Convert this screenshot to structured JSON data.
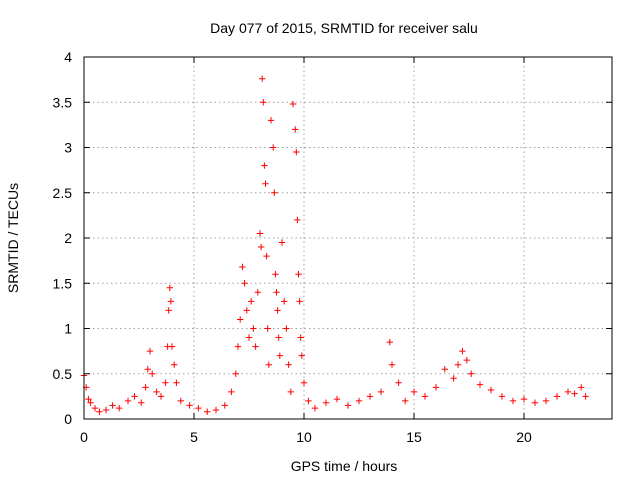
{
  "chart_data": {
    "type": "scatter",
    "title": "Day 077 of 2015, SRMTID for receiver salu",
    "xlabel": "GPS time / hours",
    "ylabel": "SRMTID / TECUs",
    "xlim": [
      0,
      24
    ],
    "ylim": [
      0,
      4
    ],
    "x_ticks": [
      0,
      5,
      10,
      15,
      20
    ],
    "x_tick_labels": [
      "0",
      "5",
      "10",
      "15",
      "20"
    ],
    "y_ticks": [
      0,
      0.5,
      1,
      1.5,
      2,
      2.5,
      3,
      3.5,
      4
    ],
    "y_tick_labels": [
      "0",
      "0.5",
      "1",
      "1.5",
      "2",
      "2.5",
      "3",
      "3.5",
      "4"
    ],
    "grid": true,
    "marker": "+",
    "color": "#ff0000",
    "series": [
      {
        "name": "salu",
        "x": [
          0.0,
          0.1,
          0.2,
          0.3,
          0.5,
          0.7,
          1.0,
          1.3,
          1.6,
          2.0,
          2.3,
          2.6,
          2.8,
          2.9,
          3.0,
          3.1,
          3.3,
          3.5,
          3.7,
          3.8,
          3.85,
          3.9,
          3.95,
          4.0,
          4.1,
          4.2,
          4.4,
          4.8,
          5.2,
          5.6,
          6.0,
          6.4,
          6.7,
          6.9,
          7.0,
          7.1,
          7.2,
          7.3,
          7.4,
          7.5,
          7.6,
          7.7,
          7.8,
          7.9,
          8.0,
          8.05,
          8.1,
          8.15,
          8.2,
          8.25,
          8.3,
          8.35,
          8.4,
          8.5,
          8.6,
          8.65,
          8.7,
          8.75,
          8.8,
          8.85,
          8.9,
          9.0,
          9.1,
          9.2,
          9.3,
          9.4,
          9.5,
          9.6,
          9.65,
          9.7,
          9.75,
          9.8,
          9.85,
          9.9,
          10.0,
          10.2,
          10.5,
          11.0,
          11.5,
          12.0,
          12.5,
          13.0,
          13.5,
          13.9,
          14.0,
          14.3,
          14.6,
          15.0,
          15.5,
          16.0,
          16.4,
          16.8,
          17.0,
          17.2,
          17.4,
          17.6,
          18.0,
          18.5,
          19.0,
          19.5,
          20.0,
          20.5,
          21.0,
          21.5,
          22.0,
          22.3,
          22.6,
          22.8
        ],
        "y": [
          0.48,
          0.35,
          0.22,
          0.18,
          0.12,
          0.08,
          0.1,
          0.15,
          0.12,
          0.2,
          0.25,
          0.18,
          0.35,
          0.55,
          0.75,
          0.5,
          0.3,
          0.25,
          0.4,
          0.8,
          1.2,
          1.45,
          1.3,
          0.8,
          0.6,
          0.4,
          0.2,
          0.15,
          0.12,
          0.08,
          0.1,
          0.15,
          0.3,
          0.5,
          0.8,
          1.1,
          1.68,
          1.5,
          1.2,
          0.9,
          1.3,
          1.0,
          0.8,
          1.4,
          2.05,
          1.9,
          3.76,
          3.5,
          2.8,
          2.6,
          1.8,
          1.0,
          0.6,
          3.3,
          3.0,
          2.5,
          1.6,
          1.4,
          1.2,
          0.9,
          0.7,
          1.95,
          1.3,
          1.0,
          0.6,
          0.3,
          3.48,
          3.2,
          2.95,
          2.2,
          1.6,
          1.3,
          0.9,
          0.7,
          0.4,
          0.2,
          0.12,
          0.18,
          0.22,
          0.15,
          0.2,
          0.25,
          0.3,
          0.85,
          0.6,
          0.4,
          0.2,
          0.3,
          0.25,
          0.35,
          0.55,
          0.45,
          0.6,
          0.75,
          0.65,
          0.5,
          0.38,
          0.32,
          0.25,
          0.2,
          0.22,
          0.18,
          0.2,
          0.25,
          0.3,
          0.28,
          0.35,
          0.25
        ]
      }
    ]
  }
}
